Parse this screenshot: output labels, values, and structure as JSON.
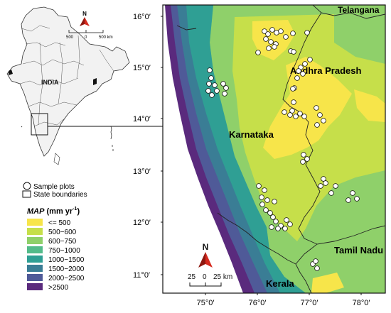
{
  "inset_map": {
    "country_label": "INDIA",
    "north_letter": "N",
    "scale_ticks": [
      "500",
      "0",
      "500 km"
    ]
  },
  "main_map": {
    "states": [
      "Telangana",
      "Andhra Pradesh",
      "Karnataka",
      "Tamil Nadu",
      "Kerala"
    ],
    "lat_labels": [
      "16°0′",
      "15°0′",
      "14°0′",
      "13°0′",
      "12°0′",
      "11°0′"
    ],
    "lon_labels": [
      "75°0′",
      "76°0′",
      "77°0′",
      "78°0′"
    ],
    "north_letter": "N",
    "scale_ticks": [
      "25",
      "0",
      "25 km"
    ]
  },
  "legend": {
    "sample_plots": "Sample plots",
    "state_boundaries": "State boundaries",
    "map_title_italic": "MAP",
    "map_units": " (mm yr",
    "map_units_sup": "-1",
    "map_units_close": ")",
    "classes": [
      {
        "label": "<= 500",
        "color": "#f7e54a"
      },
      {
        "label": "500−600",
        "color": "#c6df4a"
      },
      {
        "label": "600−750",
        "color": "#8fd06a"
      },
      {
        "label": "750−1000",
        "color": "#53bb8a"
      },
      {
        "label": "1000−1500",
        "color": "#2f9f94"
      },
      {
        "label": "1500−2000",
        "color": "#3a7d95"
      },
      {
        "label": "2000−2500",
        "color": "#4f5a98"
      },
      {
        "label": ">2500",
        "color": "#5a2a7d"
      }
    ]
  },
  "colors": {
    "north_arrow": "#d62a1f",
    "boundary": "#222222",
    "sea": "#ffffff"
  }
}
